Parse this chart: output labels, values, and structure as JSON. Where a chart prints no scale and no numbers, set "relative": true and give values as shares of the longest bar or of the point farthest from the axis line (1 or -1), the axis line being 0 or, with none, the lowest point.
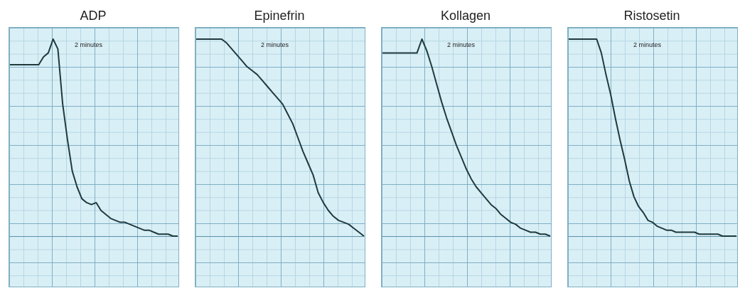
{
  "chart_data": [
    {
      "type": "line",
      "title": "ADP",
      "relative": true,
      "annotations": [
        "2 minutes"
      ],
      "categories": [
        null,
        null,
        null,
        null,
        null,
        null,
        null,
        null,
        null,
        null,
        null,
        null,
        null,
        null,
        null,
        null,
        null,
        null,
        null,
        null,
        null,
        null,
        null,
        null,
        null,
        null,
        null,
        null,
        null,
        null,
        null,
        null,
        null,
        null,
        null,
        null
      ],
      "series": [
        {
          "color": "#1f3a3d",
          "values": [
            0.87,
            0.87,
            0.87,
            0.87,
            0.87,
            0.87,
            0.87,
            0.91,
            0.93,
            1,
            0.95,
            0.67,
            0.49,
            0.33,
            0.25,
            0.19,
            0.17,
            0.16,
            0.17,
            0.13,
            0.11,
            0.09,
            0.08,
            0.07,
            0.07,
            0.06,
            0.05,
            0.04,
            0.03,
            0.03,
            0.02,
            0.01,
            0.01,
            0.01,
            0,
            0
          ]
        }
      ]
    },
    {
      "type": "line",
      "title": "Epinefrin",
      "relative": true,
      "annotations": [
        "2 minutes"
      ],
      "categories": [
        null,
        null,
        null,
        null,
        null,
        null,
        null,
        null,
        null,
        null,
        null,
        null,
        null,
        null,
        null,
        null,
        null,
        null,
        null,
        null,
        null,
        null,
        null,
        null,
        null,
        null,
        null,
        null,
        null,
        null,
        null,
        null,
        null,
        null
      ],
      "series": [
        {
          "color": "#1f3a3d",
          "values": [
            1,
            1,
            1,
            1,
            1,
            1,
            0.98,
            0.95,
            0.92,
            0.89,
            0.86,
            0.84,
            0.82,
            0.79,
            0.76,
            0.73,
            0.7,
            0.67,
            0.62,
            0.57,
            0.5,
            0.43,
            0.37,
            0.31,
            0.22,
            0.17,
            0.13,
            0.1,
            0.08,
            0.07,
            0.06,
            0.04,
            0.02,
            0
          ]
        }
      ]
    },
    {
      "type": "line",
      "title": "Kollagen",
      "relative": true,
      "annotations": [
        "2 minutes"
      ],
      "categories": [
        null,
        null,
        null,
        null,
        null,
        null,
        null,
        null,
        null,
        null,
        null,
        null,
        null,
        null,
        null,
        null,
        null,
        null,
        null,
        null,
        null,
        null,
        null,
        null,
        null,
        null,
        null,
        null,
        null,
        null,
        null,
        null,
        null,
        null,
        null
      ],
      "series": [
        {
          "color": "#1f3a3d",
          "values": [
            0.93,
            0.93,
            0.93,
            0.93,
            0.93,
            0.93,
            0.93,
            0.93,
            1,
            0.94,
            0.86,
            0.77,
            0.68,
            0.6,
            0.53,
            0.46,
            0.4,
            0.34,
            0.29,
            0.25,
            0.22,
            0.19,
            0.16,
            0.14,
            0.11,
            0.09,
            0.07,
            0.06,
            0.04,
            0.03,
            0.02,
            0.02,
            0.01,
            0.01,
            0
          ]
        }
      ]
    },
    {
      "type": "line",
      "title": "Ristosetin",
      "relative": true,
      "annotations": [
        "2 minutes"
      ],
      "categories": [
        null,
        null,
        null,
        null,
        null,
        null,
        null,
        null,
        null,
        null,
        null,
        null,
        null,
        null,
        null,
        null,
        null,
        null,
        null,
        null,
        null,
        null,
        null,
        null,
        null,
        null,
        null,
        null,
        null,
        null,
        null,
        null,
        null,
        null,
        null,
        null,
        null
      ],
      "series": [
        {
          "color": "#1f3a3d",
          "values": [
            1,
            1,
            1,
            1,
            1,
            1,
            1,
            0.93,
            0.82,
            0.72,
            0.6,
            0.49,
            0.39,
            0.28,
            0.2,
            0.15,
            0.12,
            0.08,
            0.07,
            0.05,
            0.04,
            0.03,
            0.03,
            0.02,
            0.02,
            0.02,
            0.02,
            0.02,
            0.01,
            0.01,
            0.01,
            0.01,
            0.01,
            0,
            0,
            0,
            0
          ]
        }
      ]
    }
  ]
}
